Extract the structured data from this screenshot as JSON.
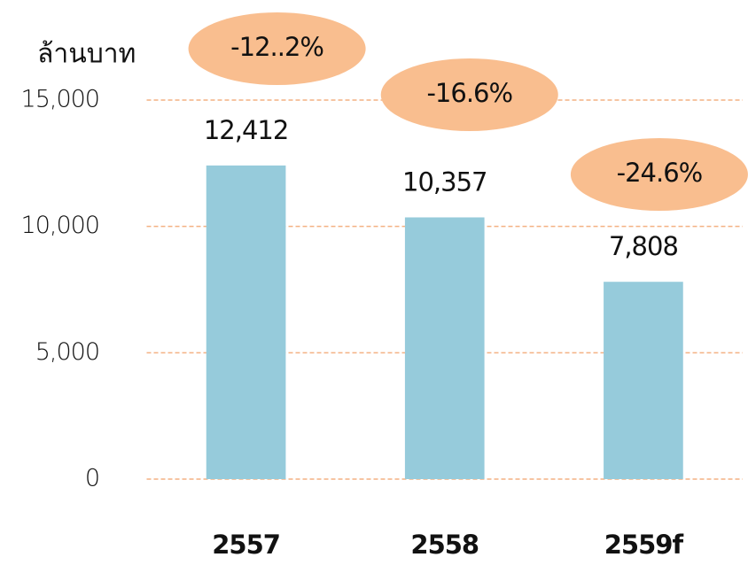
{
  "chart_data": {
    "type": "bar",
    "y_axis_label": "ล้านบาท",
    "categories": [
      "2557",
      "2558",
      "2559f"
    ],
    "values": [
      12412,
      10357,
      7808
    ],
    "value_labels": [
      "12,412",
      "10,357",
      "7,808"
    ],
    "color": "#96cbdb",
    "annotations": [
      "-12..2%",
      "-16.6%",
      "-24.6%"
    ],
    "annotation_color": "#f9be8f",
    "ylim": [
      0,
      15000
    ],
    "yticks": [
      0,
      {
        "value": 5000,
        "label": "5,000"
      },
      {
        "value": 10000,
        "label": "10,000"
      },
      {
        "value": 15000,
        "label": "15,000"
      }
    ],
    "grid": true,
    "grid_color": "#f4b183"
  }
}
